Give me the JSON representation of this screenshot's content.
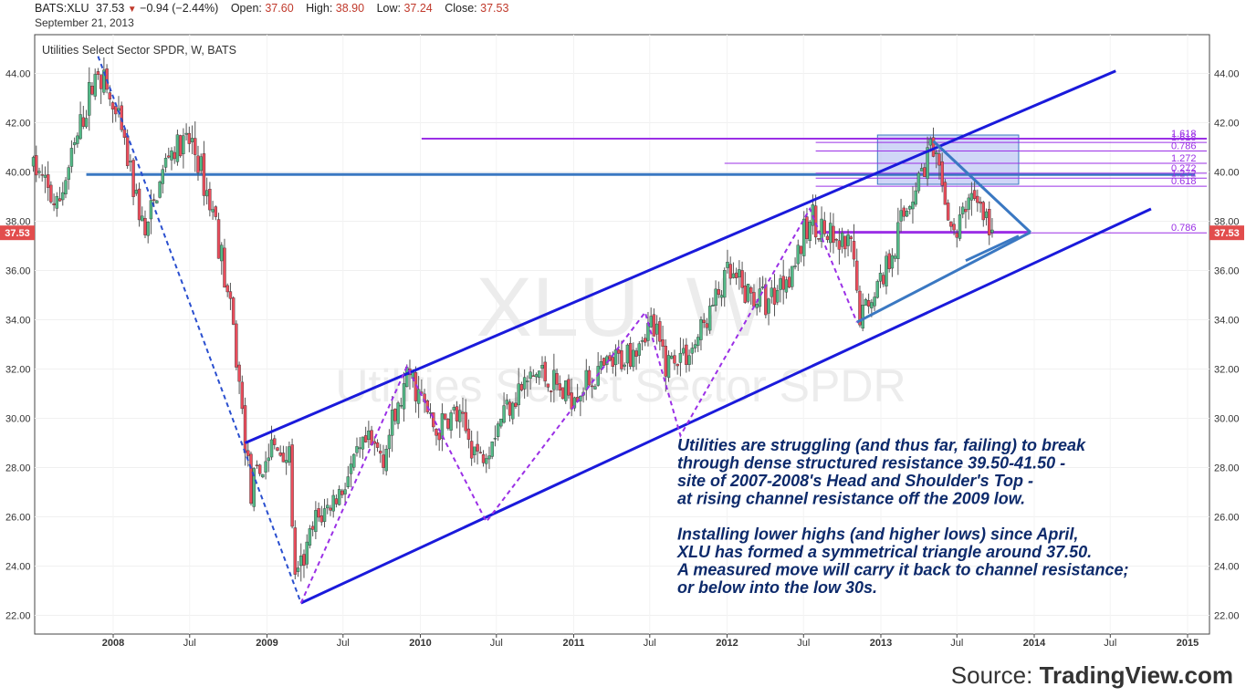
{
  "header": {
    "symbol": "BATS:XLU",
    "last": "37.53",
    "change": "−0.94 (−2.44%)",
    "open_label": "Open:",
    "open": "37.60",
    "high_label": "High:",
    "high": "38.90",
    "low_label": "Low:",
    "low": "37.24",
    "close_label": "Close:",
    "close": "37.53",
    "date": "September 21, 2013"
  },
  "chart_title": "Utilities Select Sector SPDR, W, BATS",
  "watermark": {
    "line1": "XLU, W",
    "line2": "Utilities Select Sector SPDR"
  },
  "price_tag": "37.53",
  "annotation": {
    "para1": [
      "Utilities are struggling (and thus far, failing) to break",
      "through dense structured resistance 39.50-41.50 -",
      "site of 2007-2008's Head and Shoulder's Top -",
      "at rising channel resistance off the 2009 low."
    ],
    "para2": [
      "Installing lower highs (and higher lows) since April,",
      "XLU has formed a symmetrical triangle around 37.50.",
      "A measured move will carry it back to channel resistance;",
      "or below into the low 30s."
    ]
  },
  "source": {
    "prefix": "Source: ",
    "brand": "TradingView.com"
  },
  "colors": {
    "up": "#53b987",
    "down": "#eb4d5c",
    "channel": "#1a1adb",
    "pattern": "#9b30e6",
    "fib": "#9b30e6",
    "resistance": "#3a78c2",
    "zone": "#aab4f0",
    "text": "#0d2a6b"
  },
  "chart_data": {
    "type": "candlestick",
    "title": "Utilities Select Sector SPDR, W, BATS",
    "ylim": [
      21.5,
      45.8
    ],
    "yticks": [
      "22.00",
      "24.00",
      "26.00",
      "28.00",
      "30.00",
      "32.00",
      "34.00",
      "36.00",
      "38.00",
      "40.00",
      "42.00",
      "44.00"
    ],
    "xticks": [
      "2008",
      "Jul",
      "2009",
      "Jul",
      "2010",
      "Jul",
      "2011",
      "Jul",
      "2012",
      "Jul",
      "2013",
      "Jul",
      "2014",
      "Jul",
      "2015"
    ],
    "xtick_dates": [
      "2008-01-01",
      "2008-07-01",
      "2009-01-01",
      "2009-07-01",
      "2010-01-01",
      "2010-07-01",
      "2011-01-01",
      "2011-07-01",
      "2012-01-01",
      "2012-07-01",
      "2013-01-01",
      "2013-07-01",
      "2014-01-01",
      "2014-07-01",
      "2015-01-01"
    ],
    "price_path": [
      [
        "2007-06-25",
        40.3
      ],
      [
        "2007-08-20",
        38.5
      ],
      [
        "2007-10-15",
        41.8
      ],
      [
        "2007-11-26",
        44.3
      ],
      [
        "2008-01-21",
        41.5
      ],
      [
        "2008-03-17",
        37.4
      ],
      [
        "2008-05-12",
        40.8
      ],
      [
        "2008-07-07",
        41.2
      ],
      [
        "2008-09-01",
        38.0
      ],
      [
        "2008-10-13",
        33.5
      ],
      [
        "2008-11-24",
        27.0
      ],
      [
        "2009-01-12",
        28.8
      ],
      [
        "2009-02-23",
        28.5
      ],
      [
        "2009-03-09",
        23.2
      ],
      [
        "2009-04-27",
        25.8
      ],
      [
        "2009-06-15",
        26.8
      ],
      [
        "2009-08-24",
        28.9
      ],
      [
        "2009-10-05",
        28.6
      ],
      [
        "2009-12-07",
        31.8
      ],
      [
        "2010-02-08",
        29.4
      ],
      [
        "2010-03-22",
        30.2
      ],
      [
        "2010-05-24",
        28.4
      ],
      [
        "2010-08-02",
        30.8
      ],
      [
        "2010-10-11",
        31.9
      ],
      [
        "2010-12-13",
        30.9
      ],
      [
        "2011-02-14",
        31.6
      ],
      [
        "2011-04-25",
        32.4
      ],
      [
        "2011-07-04",
        33.8
      ],
      [
        "2011-08-08",
        32.3
      ],
      [
        "2011-10-10",
        32.8
      ],
      [
        "2012-01-02",
        35.8
      ],
      [
        "2012-02-20",
        35.0
      ],
      [
        "2012-04-09",
        34.8
      ],
      [
        "2012-06-11",
        36.4
      ],
      [
        "2012-07-23",
        38.2
      ],
      [
        "2012-09-10",
        37.0
      ],
      [
        "2012-10-22",
        36.9
      ],
      [
        "2012-11-12",
        34.1
      ],
      [
        "2013-01-07",
        35.9
      ],
      [
        "2013-03-11",
        38.9
      ],
      [
        "2013-04-29",
        41.0
      ],
      [
        "2013-06-03",
        38.9
      ],
      [
        "2013-06-24",
        37.2
      ],
      [
        "2013-08-05",
        39.3
      ],
      [
        "2013-09-23",
        37.5
      ]
    ],
    "candle_seed": 7,
    "resistance_line": {
      "value": 39.9,
      "from": "2007-10-29",
      "to": "2015-01-19"
    },
    "support_line": {
      "value": 37.55,
      "from": "2012-07-30",
      "to": "2013-12-23"
    },
    "resistance_zone": {
      "from": "2012-12-24",
      "to": "2013-11-25",
      "y1": 41.5,
      "y2": 39.5
    },
    "fib_lines": [
      {
        "label": "1.618",
        "value": 41.35,
        "from": "2010-01-04"
      },
      {
        "label": "1.618",
        "value": 41.2,
        "from": "2012-07-30"
      },
      {
        "label": "0.786",
        "value": 40.85,
        "from": "2012-07-30"
      },
      {
        "label": "1.272",
        "value": 40.35,
        "from": "2011-12-26"
      },
      {
        "label": "0.272",
        "value": 39.95,
        "from": "2012-07-30"
      },
      {
        "label": "1.272",
        "value": 39.75,
        "from": "2012-07-30"
      },
      {
        "label": "0.618",
        "value": 39.42,
        "from": "2012-07-30"
      },
      {
        "label": "0.786",
        "value": 37.53,
        "from": "2012-07-30"
      }
    ],
    "channel_lines": [
      {
        "from": [
          "2009-03-23",
          22.5
        ],
        "to": [
          "2014-10-06",
          38.5
        ]
      },
      {
        "from": [
          "2008-11-10",
          29.0
        ],
        "to": [
          "2014-07-14",
          44.1
        ]
      }
    ],
    "triangle_lines": [
      {
        "from": [
          "2013-05-06",
          41.25
        ],
        "to": [
          "2013-12-23",
          37.55
        ]
      },
      {
        "from": [
          "2012-11-05",
          33.9
        ],
        "to": [
          "2013-12-23",
          37.55
        ]
      },
      {
        "from": [
          "2013-07-22",
          36.4
        ],
        "to": [
          "2013-11-25",
          37.4
        ]
      }
    ],
    "zigzag_blue": [
      [
        "2007-11-26",
        44.7
      ],
      [
        "2009-03-23",
        22.5
      ]
    ],
    "zigzag_purple": [
      [
        "2009-03-23",
        22.5
      ],
      [
        "2009-11-30",
        32.1
      ],
      [
        "2010-06-07",
        25.8
      ],
      [
        "2011-06-20",
        34.3
      ],
      [
        "2011-09-12",
        29.3
      ],
      [
        "2012-07-16",
        38.5
      ],
      [
        "2012-11-05",
        33.9
      ]
    ]
  }
}
